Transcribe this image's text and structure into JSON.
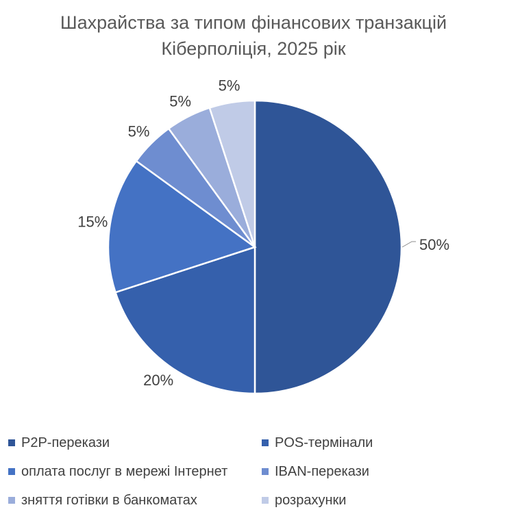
{
  "chart_data": {
    "type": "pie",
    "title": "Шахрайства за типом фінансових транзакцій",
    "subtitle": "Кіберполіція, 2025 рік",
    "categories": [
      "P2P-перекази",
      "POS-термінали",
      "оплата послуг в мережі Інтернет",
      "IBAN-перекази",
      "зняття готівки в банкоматах",
      "розрахунки"
    ],
    "values": [
      50,
      20,
      15,
      5,
      5,
      5
    ],
    "data_labels": [
      "50%",
      "20%",
      "15%",
      "5%",
      "5%",
      "5%"
    ],
    "colors": [
      "#2F5597",
      "#3560AC",
      "#4472C4",
      "#6E8DD0",
      "#9AADDB",
      "#C0CBE7"
    ],
    "legend_position": "bottom"
  }
}
